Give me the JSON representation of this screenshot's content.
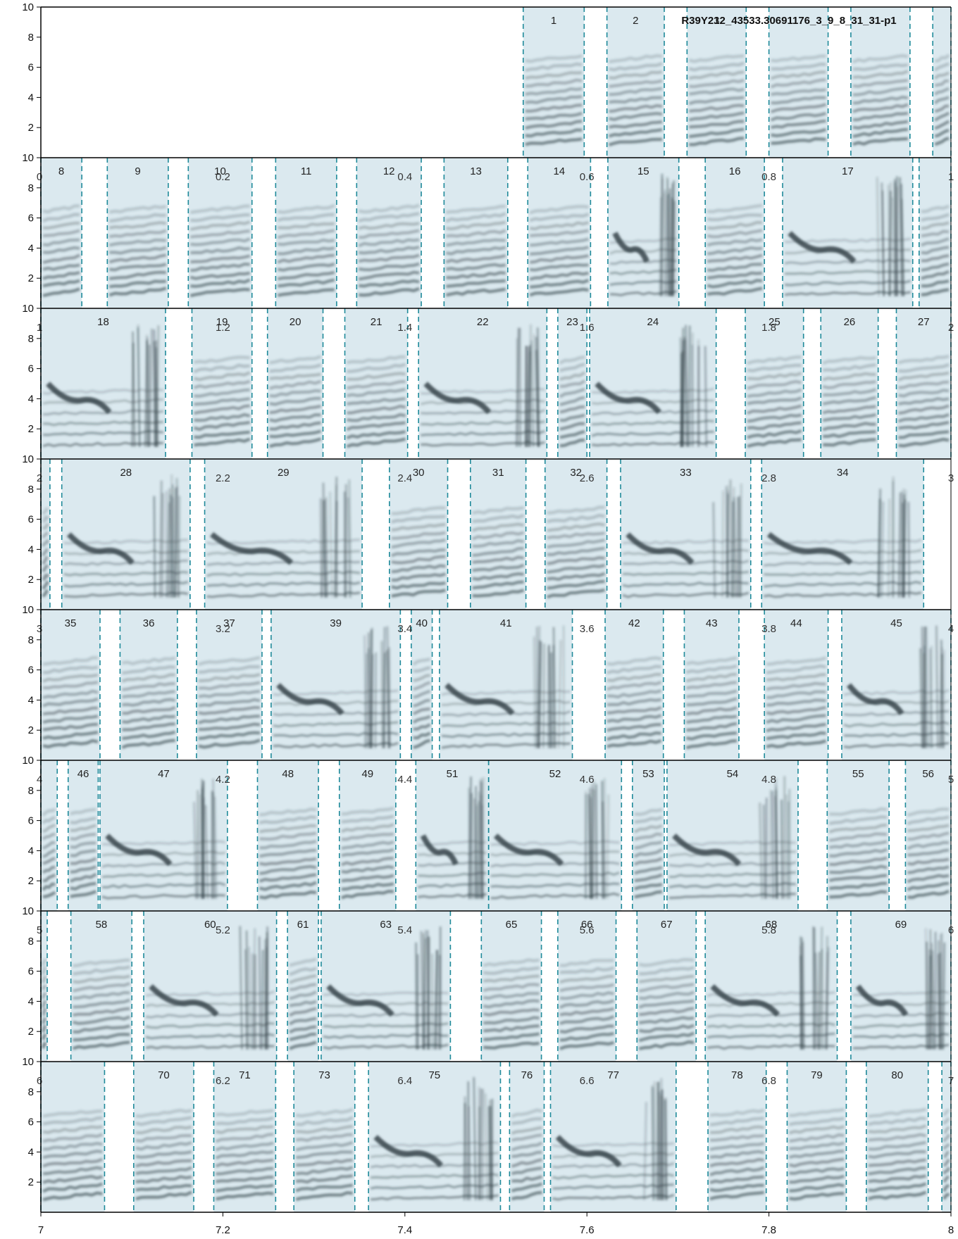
{
  "chart_data": {
    "type": "spectrogram",
    "title": "R39Y212_43533.30691176_3_9_8_31_31-p1",
    "xlabel": "",
    "ylabel": "",
    "ylim": [
      0,
      10
    ],
    "ytick_values": [
      2,
      4,
      6,
      8,
      10
    ],
    "ytick_labels": [
      "2",
      "4",
      "6",
      "8",
      "10"
    ],
    "rows": [
      {
        "xlim": [
          0,
          1
        ],
        "inner_ticks": [],
        "segments": [
          {
            "label": "1",
            "start": 0.53,
            "end": 0.597
          },
          {
            "label": "2",
            "start": 0.622,
            "end": 0.685
          },
          {
            "label": "3",
            "start": 0.71,
            "end": 0.775
          },
          {
            "label": "",
            "start": 0.8,
            "end": 0.865
          },
          {
            "label": "",
            "start": 0.89,
            "end": 0.955
          },
          {
            "label": "",
            "start": 0.98,
            "end": 1.0
          }
        ]
      },
      {
        "xlim": [
          0,
          1
        ],
        "inner_ticks": [
          {
            "v": 0,
            "t": "0"
          },
          {
            "v": 0.2,
            "t": "0.2"
          },
          {
            "v": 0.4,
            "t": "0.4"
          },
          {
            "v": 0.6,
            "t": "0.6"
          },
          {
            "v": 0.8,
            "t": "0.8"
          },
          {
            "v": 1.0,
            "t": "1"
          }
        ],
        "segments": [
          {
            "label": "8",
            "start": 0.0,
            "end": 0.045
          },
          {
            "label": "9",
            "start": 0.073,
            "end": 0.14
          },
          {
            "label": "10",
            "start": 0.162,
            "end": 0.232
          },
          {
            "label": "11",
            "start": 0.258,
            "end": 0.325
          },
          {
            "label": "12",
            "start": 0.347,
            "end": 0.418
          },
          {
            "label": "13",
            "start": 0.443,
            "end": 0.513
          },
          {
            "label": "14",
            "start": 0.535,
            "end": 0.604
          },
          {
            "label": "15",
            "start": 0.623,
            "end": 0.701
          },
          {
            "label": "16",
            "start": 0.73,
            "end": 0.795
          },
          {
            "label": "17",
            "start": 0.815,
            "end": 0.958
          },
          {
            "label": "",
            "start": 0.965,
            "end": 1.0
          }
        ]
      },
      {
        "xlim": [
          1,
          2
        ],
        "inner_ticks": [
          {
            "v": 1.0,
            "t": "1"
          },
          {
            "v": 1.2,
            "t": "1.2"
          },
          {
            "v": 1.4,
            "t": "1.4"
          },
          {
            "v": 1.6,
            "t": "1.6"
          },
          {
            "v": 1.8,
            "t": "1.8"
          },
          {
            "v": 2.0,
            "t": "2"
          }
        ],
        "segments": [
          {
            "label": "18",
            "start": 1.0,
            "end": 1.137
          },
          {
            "label": "19",
            "start": 1.166,
            "end": 1.232
          },
          {
            "label": "20",
            "start": 1.249,
            "end": 1.31
          },
          {
            "label": "21",
            "start": 1.334,
            "end": 1.403
          },
          {
            "label": "22",
            "start": 1.415,
            "end": 1.556
          },
          {
            "label": "23",
            "start": 1.568,
            "end": 1.6
          },
          {
            "label": "24",
            "start": 1.603,
            "end": 1.742
          },
          {
            "label": "25",
            "start": 1.774,
            "end": 1.838
          },
          {
            "label": "26",
            "start": 1.857,
            "end": 1.92
          },
          {
            "label": "27",
            "start": 1.94,
            "end": 2.0
          }
        ]
      },
      {
        "xlim": [
          2,
          3
        ],
        "inner_ticks": [
          {
            "v": 2.0,
            "t": "2"
          },
          {
            "v": 2.2,
            "t": "2.2"
          },
          {
            "v": 2.4,
            "t": "2.4"
          },
          {
            "v": 2.6,
            "t": "2.6"
          },
          {
            "v": 2.8,
            "t": "2.8"
          },
          {
            "v": 3.0,
            "t": "3"
          }
        ],
        "segments": [
          {
            "label": "",
            "start": 2.0,
            "end": 2.01
          },
          {
            "label": "28",
            "start": 2.023,
            "end": 2.164
          },
          {
            "label": "29",
            "start": 2.18,
            "end": 2.353
          },
          {
            "label": "30",
            "start": 2.383,
            "end": 2.447
          },
          {
            "label": "31",
            "start": 2.472,
            "end": 2.533
          },
          {
            "label": "32",
            "start": 2.554,
            "end": 2.622
          },
          {
            "label": "33",
            "start": 2.637,
            "end": 2.78
          },
          {
            "label": "34",
            "start": 2.792,
            "end": 2.97
          }
        ]
      },
      {
        "xlim": [
          3,
          4
        ],
        "inner_ticks": [
          {
            "v": 3.0,
            "t": "3"
          },
          {
            "v": 3.2,
            "t": "3.2"
          },
          {
            "v": 3.4,
            "t": "3.4"
          },
          {
            "v": 3.6,
            "t": "3.6"
          },
          {
            "v": 3.8,
            "t": "3.8"
          },
          {
            "v": 4.0,
            "t": "4"
          }
        ],
        "segments": [
          {
            "label": "35",
            "start": 3.0,
            "end": 3.065
          },
          {
            "label": "36",
            "start": 3.087,
            "end": 3.15
          },
          {
            "label": "37",
            "start": 3.171,
            "end": 3.243
          },
          {
            "label": "39",
            "start": 3.253,
            "end": 3.395
          },
          {
            "label": "40",
            "start": 3.407,
            "end": 3.43
          },
          {
            "label": "41",
            "start": 3.438,
            "end": 3.584
          },
          {
            "label": "42",
            "start": 3.62,
            "end": 3.684
          },
          {
            "label": "43",
            "start": 3.707,
            "end": 3.767
          },
          {
            "label": "44",
            "start": 3.795,
            "end": 3.865
          },
          {
            "label": "45",
            "start": 3.88,
            "end": 4.0
          }
        ]
      },
      {
        "xlim": [
          4,
          5
        ],
        "inner_ticks": [
          {
            "v": 4.0,
            "t": "4"
          },
          {
            "v": 4.2,
            "t": "4.2"
          },
          {
            "v": 4.4,
            "t": "4.4"
          },
          {
            "v": 4.6,
            "t": "4.6"
          },
          {
            "v": 4.8,
            "t": "4.8"
          },
          {
            "v": 5.0,
            "t": "5"
          }
        ],
        "segments": [
          {
            "label": "",
            "start": 4.0,
            "end": 4.018
          },
          {
            "label": "46",
            "start": 4.03,
            "end": 4.063
          },
          {
            "label": "47",
            "start": 4.065,
            "end": 4.205
          },
          {
            "label": "48",
            "start": 4.238,
            "end": 4.305
          },
          {
            "label": "49",
            "start": 4.328,
            "end": 4.39
          },
          {
            "label": "51",
            "start": 4.412,
            "end": 4.492
          },
          {
            "label": "52",
            "start": 4.492,
            "end": 4.638
          },
          {
            "label": "53",
            "start": 4.65,
            "end": 4.685
          },
          {
            "label": "54",
            "start": 4.688,
            "end": 4.832
          },
          {
            "label": "55",
            "start": 4.864,
            "end": 4.932
          },
          {
            "label": "56",
            "start": 4.95,
            "end": 5.0
          }
        ]
      },
      {
        "xlim": [
          5,
          6
        ],
        "inner_ticks": [
          {
            "v": 5.0,
            "t": "5"
          },
          {
            "v": 5.2,
            "t": "5.2"
          },
          {
            "v": 5.4,
            "t": "5.4"
          },
          {
            "v": 5.6,
            "t": "5.6"
          },
          {
            "v": 5.8,
            "t": "5.8"
          },
          {
            "v": 6.0,
            "t": "6"
          }
        ],
        "segments": [
          {
            "label": "",
            "start": 5.0,
            "end": 5.007
          },
          {
            "label": "58",
            "start": 5.033,
            "end": 5.1
          },
          {
            "label": "60",
            "start": 5.113,
            "end": 5.259
          },
          {
            "label": "61",
            "start": 5.271,
            "end": 5.305
          },
          {
            "label": "63",
            "start": 5.308,
            "end": 5.45
          },
          {
            "label": "65",
            "start": 5.484,
            "end": 5.55
          },
          {
            "label": "66",
            "start": 5.568,
            "end": 5.632
          },
          {
            "label": "67",
            "start": 5.655,
            "end": 5.72
          },
          {
            "label": "68",
            "start": 5.73,
            "end": 5.875
          },
          {
            "label": "69",
            "start": 5.89,
            "end": 6.0
          }
        ]
      },
      {
        "xlim": [
          6,
          7
        ],
        "inner_ticks": [
          {
            "v": 6.0,
            "t": "6"
          },
          {
            "v": 6.2,
            "t": "6.2"
          },
          {
            "v": 6.4,
            "t": "6.4"
          },
          {
            "v": 6.6,
            "t": "6.6"
          },
          {
            "v": 6.8,
            "t": "6.8"
          },
          {
            "v": 7.0,
            "t": "7"
          }
        ],
        "segments": [
          {
            "label": "",
            "start": 6.0,
            "end": 6.07
          },
          {
            "label": "70",
            "start": 6.102,
            "end": 6.168
          },
          {
            "label": "71",
            "start": 6.19,
            "end": 6.258
          },
          {
            "label": "73",
            "start": 6.278,
            "end": 6.345
          },
          {
            "label": "75",
            "start": 6.36,
            "end": 6.505
          },
          {
            "label": "76",
            "start": 6.515,
            "end": 6.553
          },
          {
            "label": "77",
            "start": 6.56,
            "end": 6.698
          },
          {
            "label": "78",
            "start": 6.733,
            "end": 6.797
          },
          {
            "label": "79",
            "start": 6.82,
            "end": 6.885
          },
          {
            "label": "80",
            "start": 6.907,
            "end": 6.975
          },
          {
            "label": "",
            "start": 6.99,
            "end": 7.0
          }
        ]
      }
    ],
    "xaxis_row": {
      "xlim": [
        7,
        8
      ],
      "tick_labels": [
        {
          "v": 7.0,
          "t": "7"
        },
        {
          "v": 7.2,
          "t": "7.2"
        },
        {
          "v": 7.4,
          "t": "7.4"
        },
        {
          "v": 7.6,
          "t": "7.6"
        },
        {
          "v": 7.8,
          "t": "7.8"
        },
        {
          "v": 8.0,
          "t": "8"
        }
      ]
    },
    "colors": {
      "segment_fill": "#dbe9ef",
      "segment_border": "#1f8a9a",
      "spectrogram_ink": "#2b3a40",
      "row_divider": "#000000",
      "axis": "#000000"
    }
  }
}
